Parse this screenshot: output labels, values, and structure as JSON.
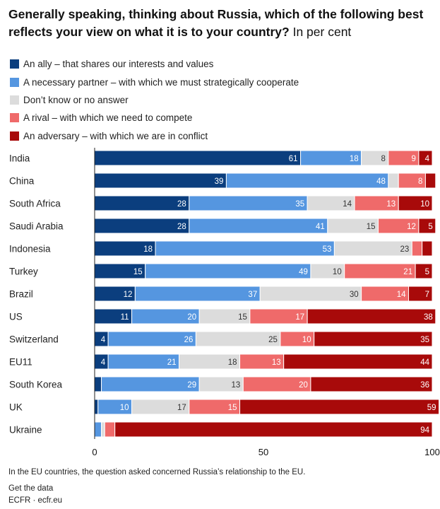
{
  "title": {
    "main": "Generally speaking, thinking about Russia, which of the following best reflects your view on what it is to your country?",
    "unit": "In per cent"
  },
  "chart_data": {
    "type": "bar",
    "orientation": "horizontal",
    "stacked": true,
    "categories": [
      "India",
      "China",
      "South Africa",
      "Saudi Arabia",
      "Indonesia",
      "Turkey",
      "Brazil",
      "US",
      "Switzerland",
      "EU11",
      "South Korea",
      "UK",
      "Ukraine"
    ],
    "series": [
      {
        "name": "An ally – that shares our interests and values",
        "color": "#0b3e7e",
        "text_color": "#ffffff",
        "values": [
          61,
          39,
          28,
          28,
          18,
          15,
          12,
          11,
          4,
          4,
          2,
          1,
          0
        ],
        "labels": [
          "61",
          "39",
          "28",
          "28",
          "18",
          "15",
          "12",
          "11",
          "4",
          "4",
          "",
          "",
          ""
        ]
      },
      {
        "name": "A necessary partner – with which we must strategically cooperate",
        "color": "#5596e0",
        "text_color": "#ffffff",
        "values": [
          18,
          48,
          35,
          41,
          53,
          49,
          37,
          20,
          26,
          21,
          29,
          10,
          2
        ],
        "labels": [
          "18",
          "48",
          "35",
          "41",
          "53",
          "49",
          "37",
          "20",
          "26",
          "21",
          "29",
          "10",
          ""
        ]
      },
      {
        "name": "Don’t know or no answer",
        "color": "#dcdcdc",
        "text_color": "#333333",
        "values": [
          8,
          3,
          14,
          15,
          23,
          10,
          30,
          15,
          25,
          18,
          13,
          17,
          1
        ],
        "labels": [
          "8",
          "",
          "14",
          "15",
          "23",
          "10",
          "30",
          "15",
          "25",
          "18",
          "13",
          "17",
          ""
        ]
      },
      {
        "name": "A rival – with which we need to compete",
        "color": "#ef6a6a",
        "text_color": "#ffffff",
        "values": [
          9,
          8,
          13,
          12,
          3,
          21,
          14,
          17,
          10,
          13,
          20,
          15,
          3
        ],
        "labels": [
          "9",
          "8",
          "13",
          "12",
          "",
          "21",
          "14",
          "17",
          "10",
          "13",
          "20",
          "15",
          ""
        ]
      },
      {
        "name": "An adversary – with which we are in conflict",
        "color": "#a80a0a",
        "text_color": "#ffffff",
        "values": [
          4,
          3,
          10,
          5,
          3,
          5,
          7,
          38,
          35,
          44,
          36,
          59,
          94
        ],
        "labels": [
          "4",
          "",
          "10",
          "5",
          "",
          "5",
          "7",
          "38",
          "35",
          "44",
          "36",
          "59",
          "94"
        ]
      }
    ],
    "xlim": [
      0,
      100
    ],
    "xticks": [
      "0",
      "50",
      "100"
    ],
    "grid": false,
    "legend_position": "top-left"
  },
  "footer": {
    "note": "In the EU countries, the question asked concerned Russia’s relationship to the EU.",
    "link": "Get the data",
    "source": "ECFR · ecfr.eu"
  }
}
